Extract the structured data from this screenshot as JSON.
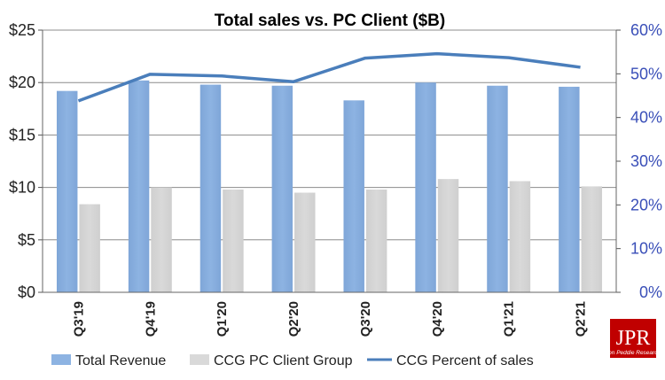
{
  "chart_data": {
    "type": "bar",
    "title": "Total sales vs. PC Client ($B)",
    "categories": [
      "Q3'19",
      "Q4'19",
      "Q1'20",
      "Q2'20",
      "Q3'20",
      "Q4'20",
      "Q1'21",
      "Q2'21"
    ],
    "series": [
      {
        "name": "Total Revenue",
        "type": "bar",
        "axis": "left",
        "values": [
          19.2,
          20.2,
          19.8,
          19.7,
          18.3,
          20.0,
          19.7,
          19.6
        ]
      },
      {
        "name": "CCG PC Client Group",
        "type": "bar",
        "axis": "left",
        "values": [
          8.4,
          10.0,
          9.8,
          9.5,
          9.8,
          10.8,
          10.6,
          10.1
        ]
      },
      {
        "name": "CCG Percent of sales",
        "type": "line",
        "axis": "right",
        "values": [
          43.8,
          49.9,
          49.5,
          48.2,
          53.6,
          54.6,
          53.7,
          51.5
        ]
      }
    ],
    "y_left": {
      "min": 0,
      "max": 25,
      "step": 5,
      "tick_labels": [
        "$0",
        "$5",
        "$10",
        "$15",
        "$20",
        "$25"
      ]
    },
    "y_right": {
      "min": 0,
      "max": 60,
      "step": 10,
      "tick_labels": [
        "0%",
        "10%",
        "20%",
        "30%",
        "40%",
        "50%",
        "60%"
      ]
    },
    "grid": true,
    "legend_position": "bottom",
    "colors": {
      "Total Revenue": "#8db3e2",
      "CCG PC Client Group": "#d9d9d9",
      "CCG Percent of sales": "#4a7ebb",
      "right_axis_text": "#3a4fb8"
    }
  },
  "logo": {
    "text": "JPR",
    "subtext": "Jon Peddie Research",
    "color": "#c00000"
  }
}
